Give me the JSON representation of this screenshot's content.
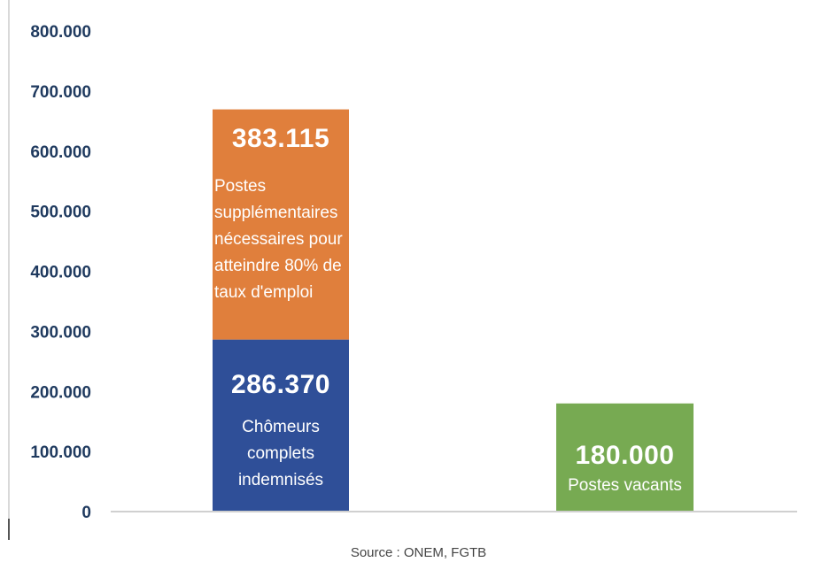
{
  "chart_data": {
    "type": "bar",
    "stacked": true,
    "ylim": [
      0,
      800000
    ],
    "yticks": [
      0,
      100000,
      200000,
      300000,
      400000,
      500000,
      600000,
      700000,
      800000
    ],
    "ytick_labels": [
      "0",
      "100.000",
      "200.000",
      "300.000",
      "400.000",
      "500.000",
      "600.000",
      "700.000",
      "800.000"
    ],
    "grid": false,
    "bars": [
      {
        "segments": [
          {
            "value": 286370,
            "value_label": "286.370",
            "description": "Chômeurs complets indemnisés",
            "color": "#2f4f98"
          },
          {
            "value": 383115,
            "value_label": "383.115",
            "description": "Postes supplémentaires nécessaires pour atteindre 80% de taux d'emploi",
            "color": "#e07f3c"
          }
        ]
      },
      {
        "segments": [
          {
            "value": 180000,
            "value_label": "180.000",
            "description": "Postes vacants",
            "color": "#77aa52"
          }
        ]
      }
    ]
  },
  "source": "Source : ONEM, FGTB",
  "colors": {
    "axis": "#d0d0d0",
    "tick_text": "#1f3a5f"
  }
}
